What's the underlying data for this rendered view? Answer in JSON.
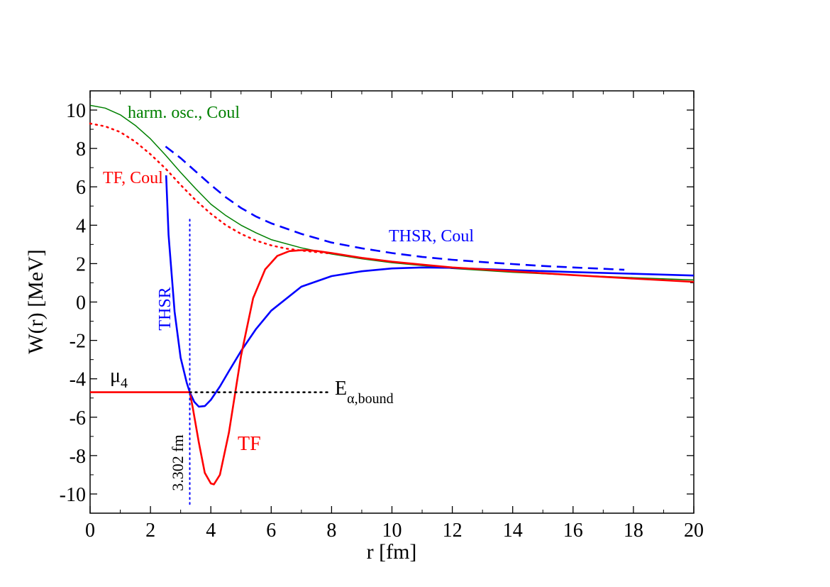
{
  "chart_data": {
    "type": "line",
    "title": "",
    "xlabel": "r [fm]",
    "ylabel": "W(r) [MeV]",
    "xlim": [
      0,
      20
    ],
    "ylim": [
      -11,
      11
    ],
    "x_ticks": [
      "0",
      "2",
      "4",
      "6",
      "8",
      "10",
      "12",
      "14",
      "16",
      "18",
      "20"
    ],
    "y_ticks": [
      "-10",
      "-8",
      "-6",
      "-4",
      "-2",
      "0",
      "2",
      "4",
      "6",
      "8",
      "10"
    ],
    "grid": false,
    "series": [
      {
        "name": "harm. osc., Coul",
        "color": "#008000",
        "style": "solid",
        "x": [
          0,
          0.5,
          1,
          1.5,
          2,
          2.5,
          3,
          3.5,
          4,
          4.5,
          5,
          5.5,
          6,
          7,
          8,
          9,
          10,
          11,
          12,
          14,
          16,
          18,
          20
        ],
        "y": [
          10.25,
          10.1,
          9.75,
          9.2,
          8.5,
          7.65,
          6.75,
          5.9,
          5.1,
          4.5,
          4.0,
          3.6,
          3.25,
          2.82,
          2.5,
          2.25,
          2.05,
          1.9,
          1.75,
          1.55,
          1.4,
          1.27,
          1.15
        ]
      },
      {
        "name": "TF, Coul",
        "color": "#ff0000",
        "style": "dotted",
        "x": [
          0,
          0.5,
          1,
          1.5,
          2,
          2.5,
          3,
          3.5,
          4,
          4.5,
          5,
          5.5,
          6,
          6.5,
          7,
          7.5,
          8
        ],
        "y": [
          9.3,
          9.15,
          8.85,
          8.35,
          7.7,
          6.95,
          6.1,
          5.3,
          4.6,
          4.0,
          3.55,
          3.2,
          2.95,
          2.78,
          2.68,
          2.6,
          2.52
        ]
      },
      {
        "name": "THSR, Coul",
        "color": "#0000ff",
        "style": "dashed",
        "x": [
          2.5,
          3,
          3.5,
          4,
          4.5,
          5,
          5.5,
          6,
          7,
          8,
          9,
          10,
          11,
          12,
          13,
          14,
          15,
          16,
          17,
          17.7
        ],
        "y": [
          8.1,
          7.5,
          6.8,
          6.1,
          5.45,
          4.9,
          4.45,
          4.1,
          3.55,
          3.1,
          2.8,
          2.55,
          2.35,
          2.2,
          2.08,
          1.98,
          1.88,
          1.8,
          1.73,
          1.68
        ]
      },
      {
        "name": "THSR",
        "color": "#0000ff",
        "style": "solid",
        "x": [
          2.52,
          2.6,
          2.8,
          3.0,
          3.2,
          3.302,
          3.45,
          3.6,
          3.8,
          4.0,
          4.3,
          4.6,
          5.0,
          5.5,
          6.0,
          7.0,
          8.0,
          9.0,
          10.0,
          11.0,
          12.0,
          13,
          14,
          16,
          18,
          20
        ],
        "y": [
          6.6,
          3.5,
          -0.5,
          -2.9,
          -4.2,
          -4.7,
          -5.2,
          -5.45,
          -5.42,
          -5.1,
          -4.4,
          -3.6,
          -2.55,
          -1.4,
          -0.45,
          0.8,
          1.35,
          1.6,
          1.75,
          1.8,
          1.78,
          1.72,
          1.66,
          1.56,
          1.47,
          1.38
        ]
      },
      {
        "name": "TF",
        "color": "#ff0000",
        "style": "solid",
        "x": [
          0,
          3.302,
          3.4,
          3.6,
          3.8,
          4.0,
          4.1,
          4.3,
          4.6,
          5.0,
          5.4,
          5.8,
          6.2,
          6.6,
          7.0,
          7.2,
          7.5,
          8,
          9,
          10,
          11,
          12,
          14,
          16,
          18,
          20
        ],
        "y": [
          -4.7,
          -4.7,
          -5.5,
          -7.3,
          -8.9,
          -9.45,
          -9.5,
          -9.0,
          -6.8,
          -2.8,
          0.2,
          1.7,
          2.4,
          2.65,
          2.7,
          2.7,
          2.66,
          2.55,
          2.3,
          2.1,
          1.95,
          1.8,
          1.6,
          1.4,
          1.22,
          1.05
        ]
      },
      {
        "name": "E_alpha,bound",
        "color": "#000000",
        "style": "dotted",
        "x": [
          3.302,
          8
        ],
        "y": [
          -4.7,
          -4.7
        ]
      }
    ],
    "vertical_marker": {
      "x": 3.302,
      "y_from": -10.6,
      "y_to": 4.3,
      "color": "#0000ff",
      "label": "3.302 fm"
    },
    "annotations": {
      "harm_osc": "harm. osc., Coul",
      "tf_coul": "TF, Coul",
      "thsr_coul": "THSR, Coul",
      "thsr": "THSR",
      "tf": "TF",
      "mu_main": "μ",
      "mu_sub": "4",
      "e_main": "E",
      "e_sub": "α,bound",
      "r0": "3.302 fm"
    }
  }
}
